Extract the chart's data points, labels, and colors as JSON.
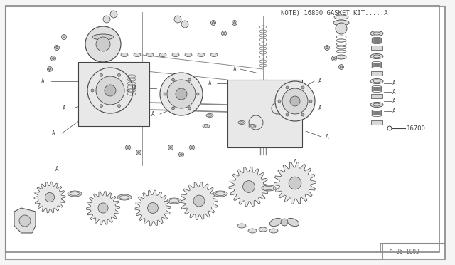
{
  "bg_color": "#f5f5f5",
  "border_color": "#999999",
  "line_color": "#444444",
  "part_color": "#666666",
  "title_text": "NOTE) 16800 GASKET KIT.....A",
  "label_16700": "16700",
  "label_bottom": "^ 86 1003",
  "label_A_instances": [
    "A",
    "A",
    "A",
    "A",
    "A",
    "A",
    "A",
    "A",
    "A",
    "A",
    "A",
    "A"
  ],
  "title_fontsize": 7,
  "label_fontsize": 6,
  "diagram_bg": "#ffffff",
  "border_linewidth": 1.5
}
